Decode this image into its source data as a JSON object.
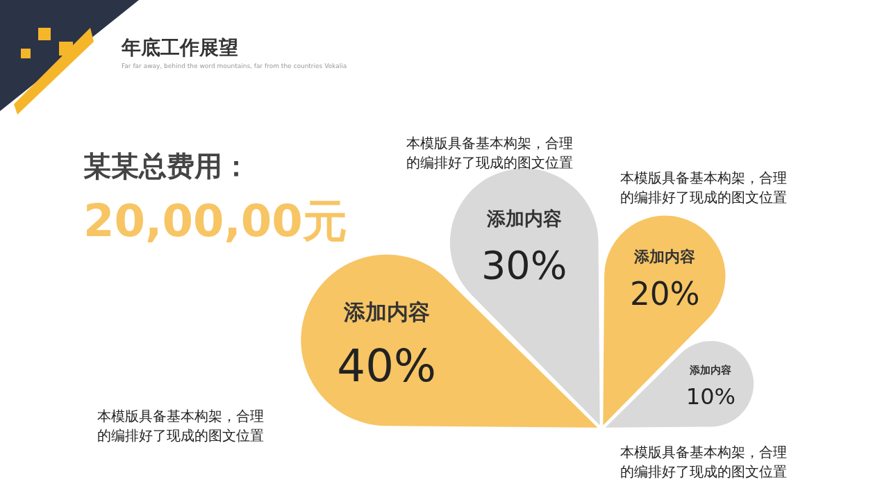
{
  "chart_data": {
    "type": "other",
    "title": "年底工作展望",
    "subtitle": "Far far away, behind the word mountains, far from the countries Vokalia",
    "categories": [
      "添加内容",
      "添加内容",
      "添加内容",
      "添加内容"
    ],
    "values": [
      40,
      30,
      20,
      10
    ],
    "value_labels": [
      "40%",
      "30%",
      "20%",
      "10%"
    ],
    "colors": [
      "#f7c564",
      "#d9d9d9",
      "#f7c564",
      "#d9d9d9"
    ],
    "annotations": [
      "某某总费用：",
      "20,00,00元",
      "本模版具备基本构架，合理的编排好了现成的图文位置",
      "本模版具备基本构架，合理的编排好了现成的图文位置",
      "本模版具备基本构架，合理的编排好了现成的图文位置",
      "本模版具备基本构架，合理的编排好了现成的图文位置"
    ]
  }
}
